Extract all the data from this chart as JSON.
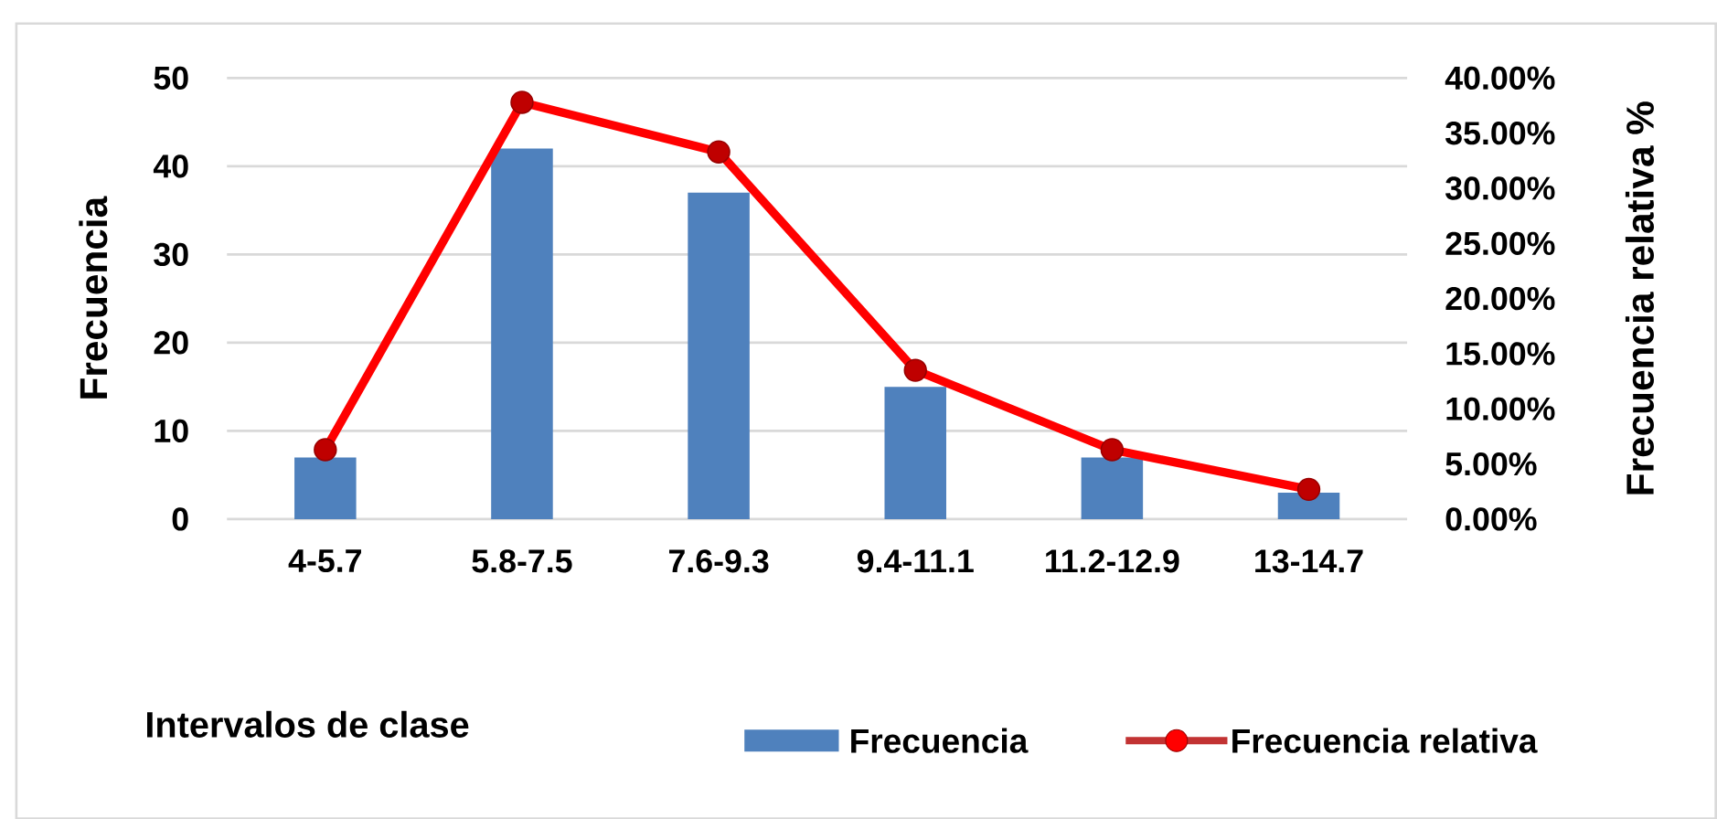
{
  "chart_data": {
    "type": "bar",
    "categories": [
      "4-5.7",
      "5.8-7.5",
      "7.6-9.3",
      "9.4-11.1",
      "11.2-12.9",
      "13-14.7"
    ],
    "series": [
      {
        "name": "Frecuencia",
        "color": "#4f81bd",
        "values": [
          7,
          42,
          37,
          15,
          7,
          3
        ]
      },
      {
        "name": "Frecuencia relativa",
        "type": "line",
        "axis": "y2",
        "color": "#ff0000",
        "marker": "circle",
        "values": [
          6.3,
          37.8,
          33.3,
          13.5,
          6.3,
          2.7
        ]
      }
    ],
    "xlabel": "Intervalos de clase",
    "ylabel": "Frecuencia",
    "y2label": "Frecuencia relativa %",
    "ylim": [
      0,
      50
    ],
    "yticks": [
      0,
      10,
      20,
      30,
      40,
      50
    ],
    "y2lim": [
      0,
      40
    ],
    "y2ticks": [
      {
        "value": 0,
        "label": "0.00%"
      },
      {
        "value": 5,
        "label": "5.00%"
      },
      {
        "value": 10,
        "label": "10.00%"
      },
      {
        "value": 15,
        "label": "15.00%"
      },
      {
        "value": 20,
        "label": "20.00%"
      },
      {
        "value": 25,
        "label": "25.00%"
      },
      {
        "value": 30,
        "label": "30.00%"
      },
      {
        "value": 35,
        "label": "35.00%"
      },
      {
        "value": 40,
        "label": "40.00%"
      }
    ],
    "grid": "y",
    "legend": "bottom"
  }
}
